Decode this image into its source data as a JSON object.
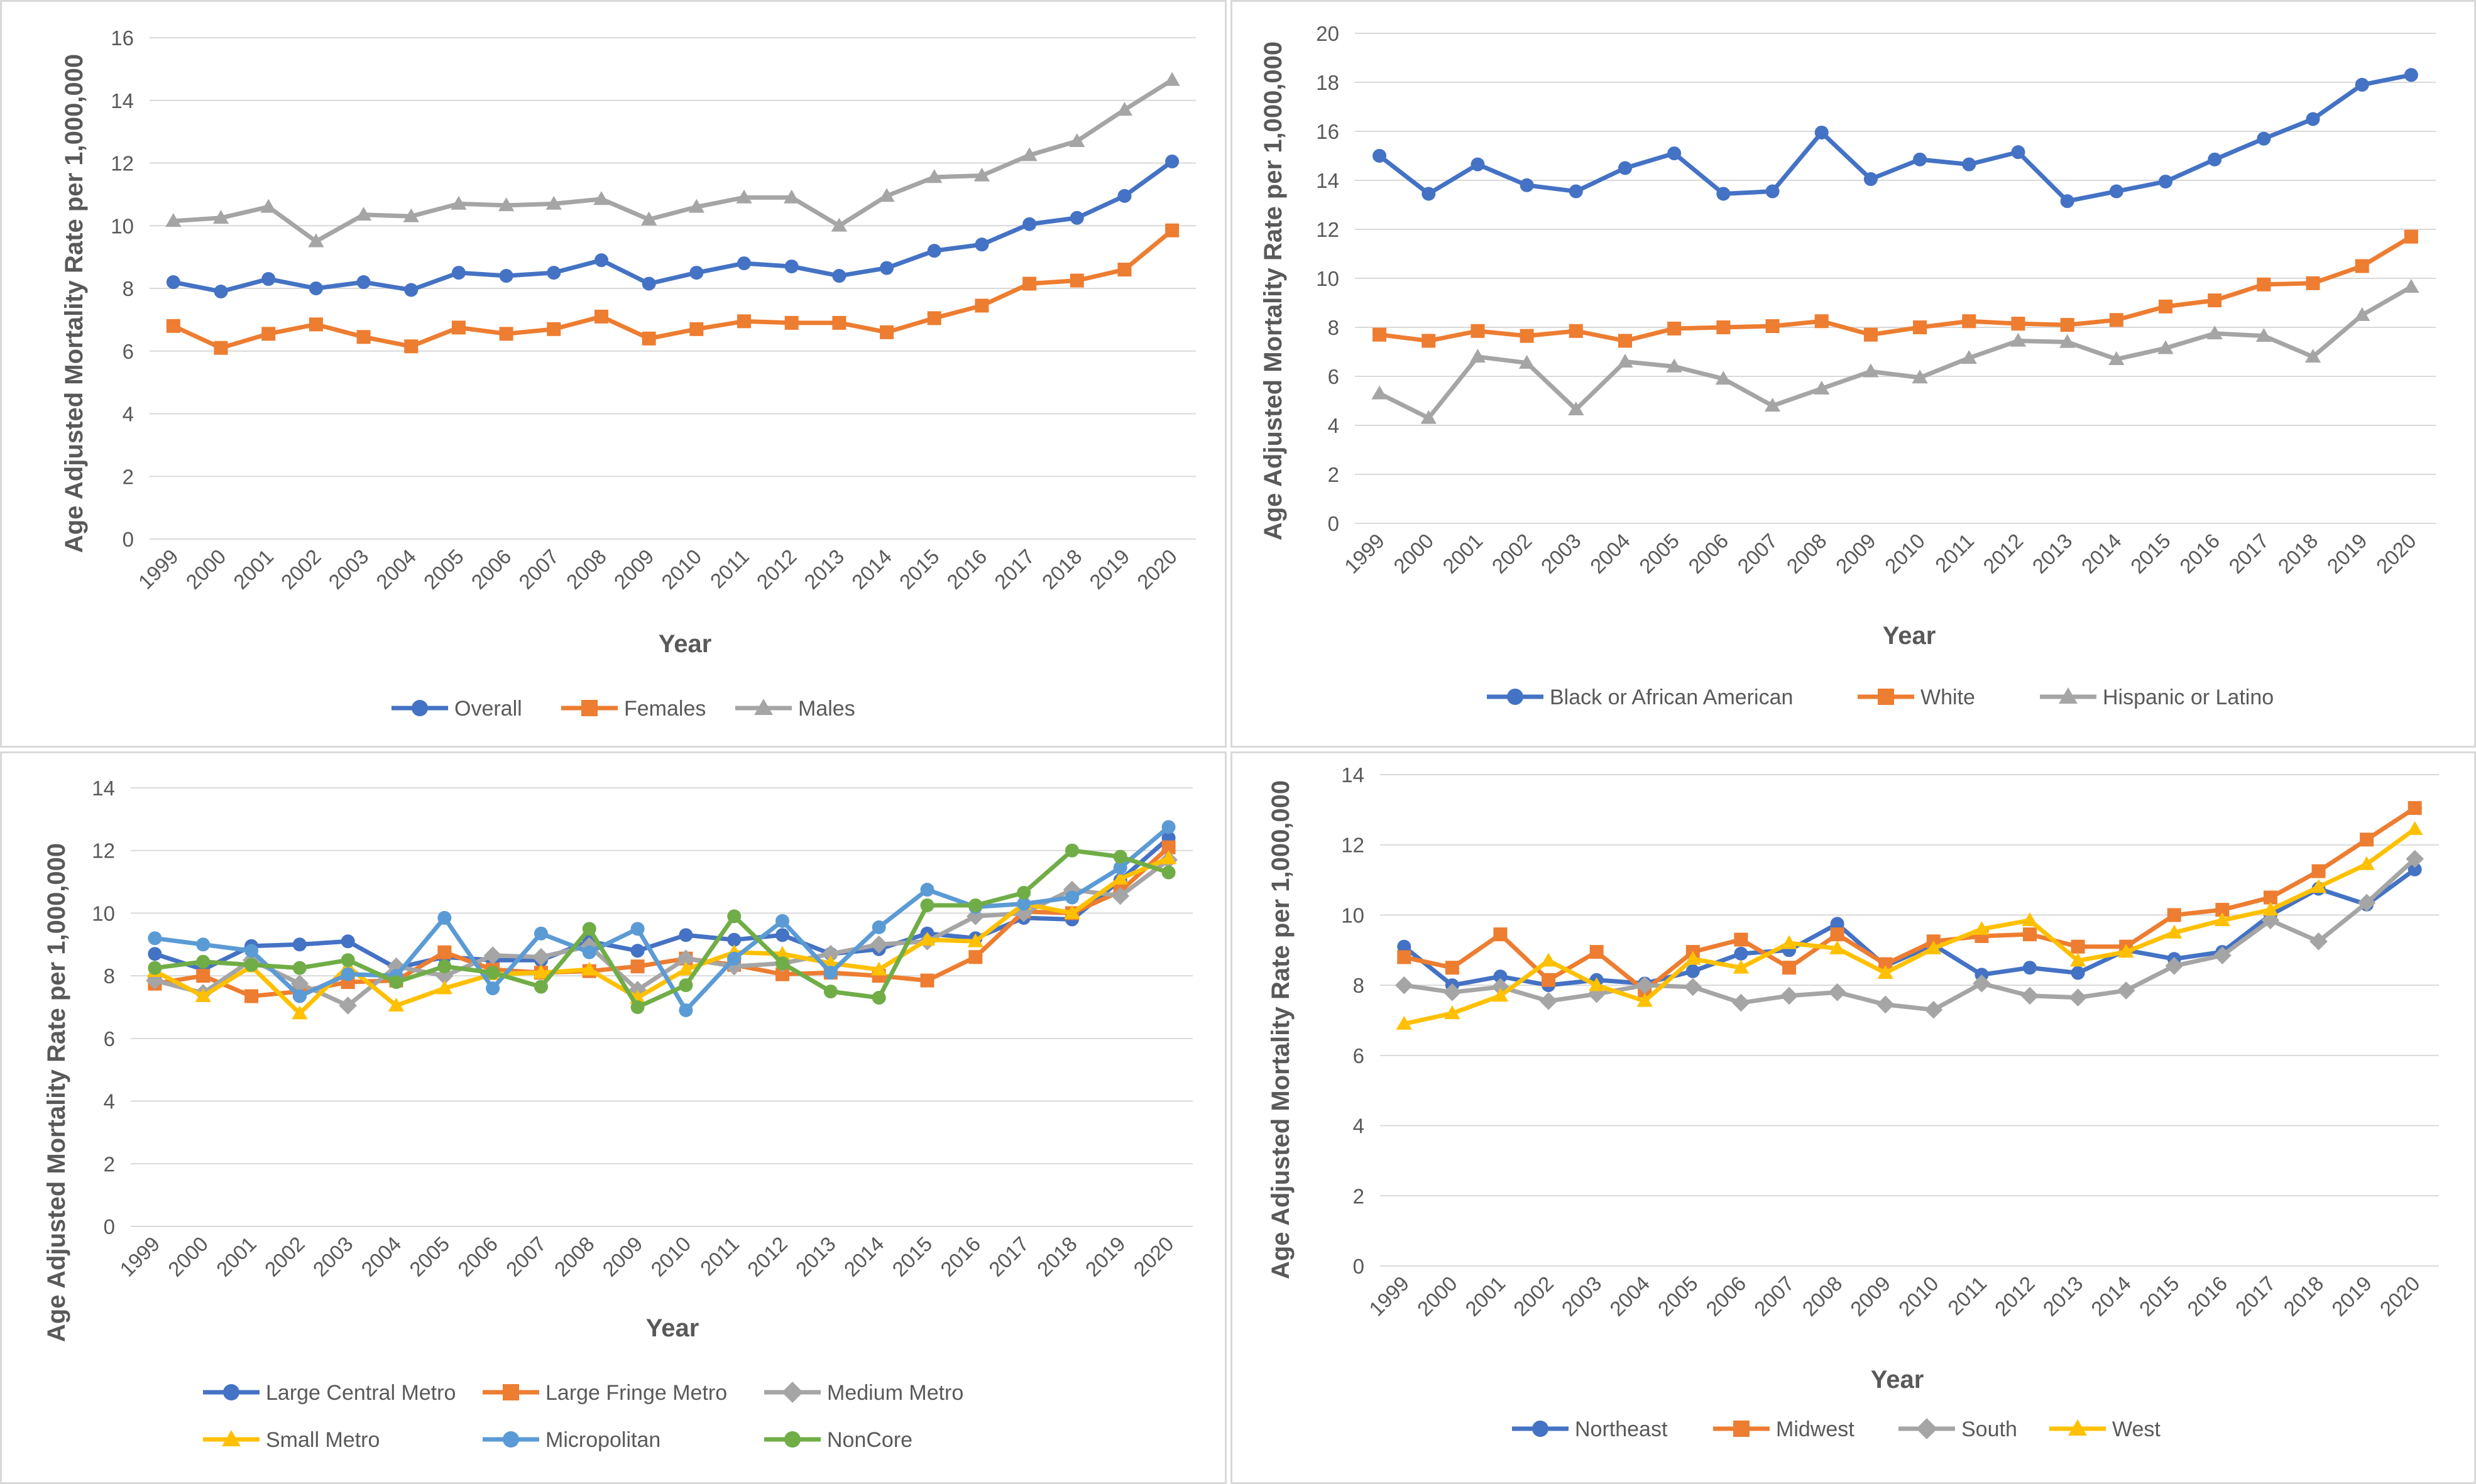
{
  "chart_data": [
    {
      "type": "line",
      "xlabel": "Year",
      "ylabel": "Age Adjusted Mortality Rate per 1,000,000",
      "ylim": [
        0,
        16
      ],
      "yticks": [
        0,
        2,
        4,
        6,
        8,
        10,
        12,
        14,
        16
      ],
      "x": [
        "1999",
        "2000",
        "2001",
        "2002",
        "2003",
        "2004",
        "2005",
        "2006",
        "2007",
        "2008",
        "2009",
        "2010",
        "2011",
        "2012",
        "2013",
        "2014",
        "2015",
        "2016",
        "2017",
        "2018",
        "2019",
        "2020"
      ],
      "legend_position": "bottom",
      "grid": true,
      "series": [
        {
          "name": "Overall",
          "color": "#4472C4",
          "marker": "circle",
          "values": [
            8.2,
            7.9,
            8.3,
            8.0,
            8.2,
            7.95,
            8.5,
            8.4,
            8.5,
            8.9,
            8.15,
            8.5,
            8.8,
            8.7,
            8.4,
            8.65,
            9.2,
            9.4,
            10.05,
            10.25,
            10.95,
            12.05
          ]
        },
        {
          "name": "Females",
          "color": "#ED7D31",
          "marker": "square",
          "values": [
            6.8,
            6.1,
            6.55,
            6.85,
            6.45,
            6.15,
            6.75,
            6.55,
            6.7,
            7.1,
            6.4,
            6.7,
            6.95,
            6.9,
            6.9,
            6.6,
            7.05,
            7.45,
            8.15,
            8.25,
            8.6,
            9.85
          ]
        },
        {
          "name": "Males",
          "color": "#A5A5A5",
          "marker": "triangle",
          "values": [
            10.15,
            10.25,
            10.6,
            9.5,
            10.35,
            10.3,
            10.7,
            10.65,
            10.7,
            10.85,
            10.2,
            10.6,
            10.9,
            10.9,
            10.0,
            10.95,
            11.55,
            11.6,
            12.25,
            12.7,
            13.7,
            14.65
          ]
        }
      ]
    },
    {
      "type": "line",
      "xlabel": "Year",
      "ylabel": "Age Adjusted Mortality Rate per 1,000,000",
      "ylim": [
        0,
        20
      ],
      "yticks": [
        0,
        2,
        4,
        6,
        8,
        10,
        12,
        14,
        16,
        18,
        20
      ],
      "x": [
        "1999",
        "2000",
        "2001",
        "2002",
        "2003",
        "2004",
        "2005",
        "2006",
        "2007",
        "2008",
        "2009",
        "2010",
        "2011",
        "2012",
        "2013",
        "2014",
        "2015",
        "2016",
        "2017",
        "2018",
        "2019",
        "2020"
      ],
      "legend_position": "bottom",
      "grid": true,
      "series": [
        {
          "name": "Black or African American",
          "color": "#4472C4",
          "marker": "circle",
          "values": [
            15.0,
            13.45,
            14.65,
            13.8,
            13.55,
            14.5,
            15.1,
            13.45,
            13.55,
            15.95,
            14.05,
            14.85,
            14.65,
            15.15,
            13.15,
            13.55,
            13.95,
            14.85,
            15.7,
            16.5,
            17.9,
            18.3
          ]
        },
        {
          "name": "White",
          "color": "#ED7D31",
          "marker": "square",
          "values": [
            7.7,
            7.45,
            7.85,
            7.65,
            7.85,
            7.45,
            7.95,
            8.0,
            8.05,
            8.25,
            7.7,
            8.0,
            8.25,
            8.15,
            8.1,
            8.3,
            8.85,
            9.1,
            9.75,
            9.8,
            10.5,
            11.7
          ]
        },
        {
          "name": "Hispanic or Latino",
          "color": "#A5A5A5",
          "marker": "triangle",
          "values": [
            5.3,
            4.3,
            6.8,
            6.55,
            4.65,
            6.6,
            6.4,
            5.9,
            4.8,
            5.5,
            6.2,
            5.95,
            6.75,
            7.45,
            7.4,
            6.7,
            7.15,
            7.75,
            7.65,
            6.8,
            8.5,
            9.65
          ]
        }
      ]
    },
    {
      "type": "line",
      "xlabel": "Year",
      "ylabel": "Age Adjusted Mortality Rate per 1,000,000",
      "ylim": [
        0,
        14
      ],
      "yticks": [
        0,
        2,
        4,
        6,
        8,
        10,
        12,
        14
      ],
      "x": [
        "1999",
        "2000",
        "2001",
        "2002",
        "2003",
        "2004",
        "2005",
        "2006",
        "2007",
        "2008",
        "2009",
        "2010",
        "2011",
        "2012",
        "2013",
        "2014",
        "2015",
        "2016",
        "2017",
        "2018",
        "2019",
        "2020"
      ],
      "legend_position": "bottom",
      "grid": true,
      "series": [
        {
          "name": "Large Central Metro",
          "color": "#4472C4",
          "marker": "circle",
          "values": [
            8.7,
            8.2,
            8.95,
            9.0,
            9.1,
            8.25,
            8.6,
            8.5,
            8.5,
            9.1,
            8.8,
            9.3,
            9.15,
            9.3,
            8.7,
            8.85,
            9.35,
            9.2,
            9.85,
            9.8,
            11.05,
            12.4
          ]
        },
        {
          "name": "Large Fringe Metro",
          "color": "#ED7D31",
          "marker": "square",
          "values": [
            7.75,
            8.0,
            7.35,
            7.5,
            7.8,
            7.85,
            8.75,
            8.2,
            8.1,
            8.15,
            8.3,
            8.55,
            8.35,
            8.05,
            8.1,
            8.0,
            7.85,
            8.6,
            10.05,
            10.0,
            10.7,
            12.1
          ]
        },
        {
          "name": "Medium Metro",
          "color": "#A5A5A5",
          "marker": "diamond",
          "values": [
            7.85,
            7.45,
            8.5,
            7.75,
            7.05,
            8.3,
            8.0,
            8.65,
            8.6,
            8.95,
            7.55,
            8.55,
            8.3,
            8.4,
            8.7,
            9.0,
            9.1,
            9.9,
            10.0,
            10.75,
            10.55,
            11.7
          ]
        },
        {
          "name": "Small Metro",
          "color": "#FFC000",
          "marker": "triangle",
          "values": [
            8.15,
            7.35,
            8.3,
            6.8,
            8.3,
            7.05,
            7.6,
            8.05,
            8.1,
            8.2,
            7.3,
            8.2,
            8.75,
            8.7,
            8.4,
            8.2,
            9.15,
            9.1,
            10.3,
            10.0,
            11.1,
            11.75
          ]
        },
        {
          "name": "Micropolitan",
          "color": "#5B9BD5",
          "marker": "circle",
          "values": [
            9.2,
            9.0,
            8.8,
            7.35,
            8.05,
            8.0,
            9.85,
            7.6,
            9.35,
            8.75,
            9.5,
            6.9,
            8.55,
            9.75,
            8.1,
            9.55,
            10.75,
            10.2,
            10.3,
            10.5,
            11.45,
            12.75
          ]
        },
        {
          "name": "NonCore",
          "color": "#70AD47",
          "marker": "circle",
          "values": [
            8.25,
            8.45,
            8.35,
            8.25,
            8.5,
            7.8,
            8.3,
            8.1,
            7.65,
            9.5,
            7.0,
            7.7,
            9.9,
            8.4,
            7.5,
            7.3,
            10.25,
            10.25,
            10.65,
            12.0,
            11.8,
            11.3
          ]
        }
      ]
    },
    {
      "type": "line",
      "xlabel": "Year",
      "ylabel": "Age Adjusted Mortality Rate per 1,000,000",
      "ylim": [
        0,
        14
      ],
      "yticks": [
        0,
        2,
        4,
        6,
        8,
        10,
        12,
        14
      ],
      "x": [
        "1999",
        "2000",
        "2001",
        "2002",
        "2003",
        "2004",
        "2005",
        "2006",
        "2007",
        "2008",
        "2009",
        "2010",
        "2011",
        "2012",
        "2013",
        "2014",
        "2015",
        "2016",
        "2017",
        "2018",
        "2019",
        "2020"
      ],
      "legend_position": "bottom",
      "grid": true,
      "series": [
        {
          "name": "Northeast",
          "color": "#4472C4",
          "marker": "circle",
          "values": [
            9.1,
            8.0,
            8.25,
            8.0,
            8.15,
            8.05,
            8.4,
            8.9,
            9.0,
            9.75,
            8.55,
            9.15,
            8.3,
            8.5,
            8.35,
            9.0,
            8.75,
            8.95,
            10.0,
            10.75,
            10.3,
            11.3
          ]
        },
        {
          "name": "Midwest",
          "color": "#ED7D31",
          "marker": "square",
          "values": [
            8.8,
            8.5,
            9.45,
            8.15,
            8.95,
            7.85,
            8.95,
            9.3,
            8.5,
            9.45,
            8.6,
            9.25,
            9.4,
            9.45,
            9.1,
            9.1,
            10.0,
            10.15,
            10.5,
            11.25,
            12.15,
            13.05
          ]
        },
        {
          "name": "South",
          "color": "#A5A5A5",
          "marker": "diamond",
          "values": [
            8.0,
            7.8,
            7.95,
            7.55,
            7.75,
            8.0,
            7.95,
            7.5,
            7.7,
            7.8,
            7.45,
            7.3,
            8.05,
            7.7,
            7.65,
            7.85,
            8.55,
            8.85,
            9.85,
            9.25,
            10.35,
            11.6
          ]
        },
        {
          "name": "West",
          "color": "#FFC000",
          "marker": "triangle",
          "values": [
            6.9,
            7.2,
            7.7,
            8.7,
            8.0,
            7.55,
            8.75,
            8.5,
            9.2,
            9.05,
            8.35,
            9.05,
            9.6,
            9.85,
            8.7,
            8.95,
            9.5,
            9.85,
            10.15,
            10.8,
            11.45,
            12.45
          ]
        }
      ]
    }
  ]
}
